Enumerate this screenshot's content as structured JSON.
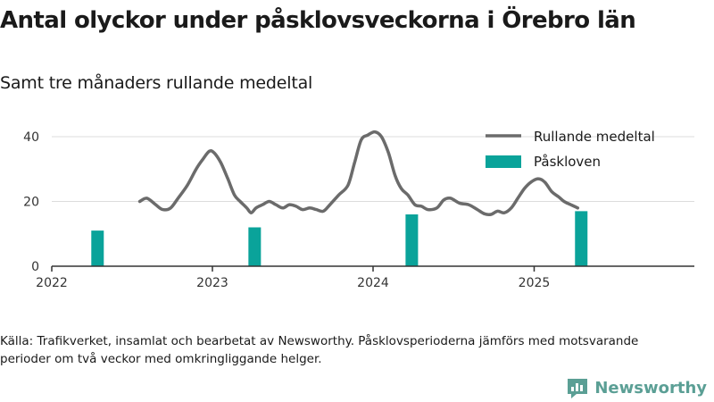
{
  "colors": {
    "line": "#6b6b6b",
    "bar": "#0aa39a",
    "brand": "#5b9f95",
    "grid": "#dcdcdc",
    "axis": "#333333"
  },
  "brand": {
    "name": "Newsworthy",
    "icon": "newsworthy-logo-icon"
  },
  "footer": {
    "source": "Källa: Trafikverket, insamlat och bearbetat av Newsworthy. Påsklovsperioderna jämförs med motsvarande perioder om två veckor med omkringliggande helger."
  },
  "chart_data": {
    "type": "line+bar",
    "title": "Antal olyckor under påsklovsveckorna i Örebro län",
    "subtitle": "Samt tre månaders rullande medeltal",
    "ylim": [
      0,
      40
    ],
    "yticks": [
      0,
      20,
      40
    ],
    "xlim": [
      "2022-01-01",
      "2025-12-31"
    ],
    "xticks": [
      {
        "label": "2022",
        "date": "2022-01-01"
      },
      {
        "label": "2023",
        "date": "2023-01-01"
      },
      {
        "label": "2024",
        "date": "2024-01-01"
      },
      {
        "label": "2025",
        "date": "2025-01-01"
      }
    ],
    "grid": true,
    "legend": "top-right",
    "series": [
      {
        "name": "Rullande medeltal",
        "kind": "line",
        "points": [
          [
            "2022-07-20",
            20
          ],
          [
            "2022-08-05",
            21
          ],
          [
            "2022-08-25",
            19
          ],
          [
            "2022-09-10",
            17.5
          ],
          [
            "2022-09-28",
            18
          ],
          [
            "2022-10-15",
            21
          ],
          [
            "2022-11-05",
            25
          ],
          [
            "2022-11-25",
            30
          ],
          [
            "2022-12-10",
            33
          ],
          [
            "2022-12-25",
            35.5
          ],
          [
            "2023-01-05",
            35
          ],
          [
            "2023-01-20",
            32
          ],
          [
            "2023-02-05",
            27
          ],
          [
            "2023-02-20",
            22
          ],
          [
            "2023-03-05",
            20
          ],
          [
            "2023-03-20",
            18
          ],
          [
            "2023-03-30",
            16.5
          ],
          [
            "2023-04-10",
            18
          ],
          [
            "2023-04-25",
            19
          ],
          [
            "2023-05-10",
            20
          ],
          [
            "2023-05-25",
            19
          ],
          [
            "2023-06-10",
            18
          ],
          [
            "2023-06-25",
            19
          ],
          [
            "2023-07-10",
            18.5
          ],
          [
            "2023-07-25",
            17.5
          ],
          [
            "2023-08-10",
            18
          ],
          [
            "2023-08-25",
            17.5
          ],
          [
            "2023-09-10",
            17
          ],
          [
            "2023-09-25",
            19
          ],
          [
            "2023-10-15",
            22
          ],
          [
            "2023-11-05",
            25
          ],
          [
            "2023-11-20",
            32
          ],
          [
            "2023-12-05",
            39
          ],
          [
            "2023-12-20",
            40.5
          ],
          [
            "2024-01-05",
            41.5
          ],
          [
            "2024-01-20",
            40
          ],
          [
            "2024-02-05",
            35
          ],
          [
            "2024-02-20",
            28
          ],
          [
            "2024-03-05",
            24
          ],
          [
            "2024-03-20",
            22
          ],
          [
            "2024-04-05",
            19
          ],
          [
            "2024-04-20",
            18.5
          ],
          [
            "2024-05-05",
            17.5
          ],
          [
            "2024-05-25",
            18
          ],
          [
            "2024-06-10",
            20.5
          ],
          [
            "2024-06-25",
            21
          ],
          [
            "2024-07-15",
            19.5
          ],
          [
            "2024-08-05",
            19
          ],
          [
            "2024-08-25",
            17.5
          ],
          [
            "2024-09-10",
            16.2
          ],
          [
            "2024-09-25",
            16
          ],
          [
            "2024-10-10",
            17
          ],
          [
            "2024-10-25",
            16.5
          ],
          [
            "2024-11-10",
            18
          ],
          [
            "2024-11-25",
            21
          ],
          [
            "2024-12-10",
            24
          ],
          [
            "2024-12-25",
            26
          ],
          [
            "2025-01-10",
            27
          ],
          [
            "2025-01-25",
            26
          ],
          [
            "2025-02-10",
            23
          ],
          [
            "2025-02-25",
            21.5
          ],
          [
            "2025-03-10",
            20
          ],
          [
            "2025-03-25",
            19
          ],
          [
            "2025-04-10",
            18
          ]
        ]
      },
      {
        "name": "Påskloven",
        "kind": "bar",
        "bars": [
          {
            "date": "2022-04-15",
            "value": 11
          },
          {
            "date": "2023-04-07",
            "value": 12
          },
          {
            "date": "2024-03-29",
            "value": 16
          },
          {
            "date": "2025-04-18",
            "value": 17
          }
        ]
      }
    ]
  }
}
